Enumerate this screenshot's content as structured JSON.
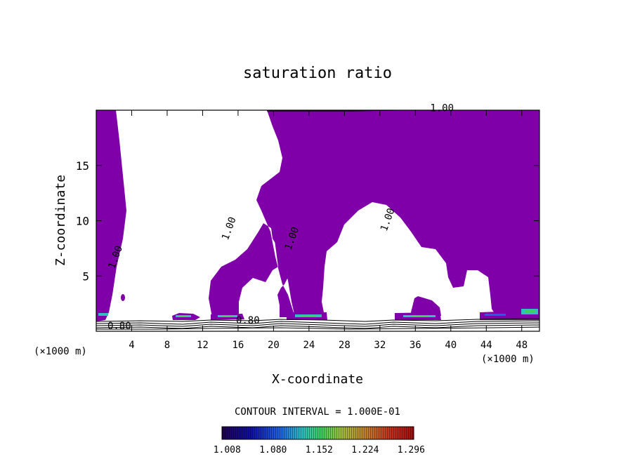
{
  "chart_data": {
    "type": "heatmap",
    "title": "saturation ratio",
    "xlabel": "X-coordinate",
    "ylabel": "Z-coordinate",
    "x_units": "(×1000 m)",
    "z_units": "(×1000 m)",
    "xlim": [
      0,
      50
    ],
    "ylim": [
      0,
      20
    ],
    "x_ticks": [
      4,
      8,
      12,
      16,
      20,
      24,
      28,
      32,
      36,
      40,
      44,
      48
    ],
    "y_ticks": [
      5,
      10,
      15
    ],
    "contour_interval_text": "CONTOUR INTERVAL = 1.000E-01",
    "colorbar": {
      "tick_values": [
        1.008,
        1.08,
        1.152,
        1.224,
        1.296
      ],
      "tick_labels": [
        "1.008",
        "1.080",
        "1.152",
        "1.224",
        "1.296"
      ],
      "range": [
        1.0,
        1.3
      ],
      "colors": [
        "#200050",
        "#1010a0",
        "#2060e0",
        "#30c0c0",
        "#40d060",
        "#a0c040",
        "#c08030",
        "#c03020",
        "#a01010"
      ]
    },
    "fill_color": "#7f00a8",
    "contour_labels": [
      {
        "text": "1.00",
        "x": 39.0,
        "z": 19.9
      },
      {
        "text": "1.00",
        "x": 2.5,
        "z": 6.6
      },
      {
        "text": "1.00",
        "x": 15.3,
        "z": 9.2
      },
      {
        "text": "1.00",
        "x": 22.4,
        "z": 8.3
      },
      {
        "text": "1.00",
        "x": 33.2,
        "z": 10.0
      },
      {
        "text": "0.80",
        "x": 2.6,
        "z": 0.2
      },
      {
        "text": "0.80",
        "x": 17.1,
        "z": 0.7
      }
    ],
    "low_layer_contour_values": [
      0.8
    ]
  }
}
